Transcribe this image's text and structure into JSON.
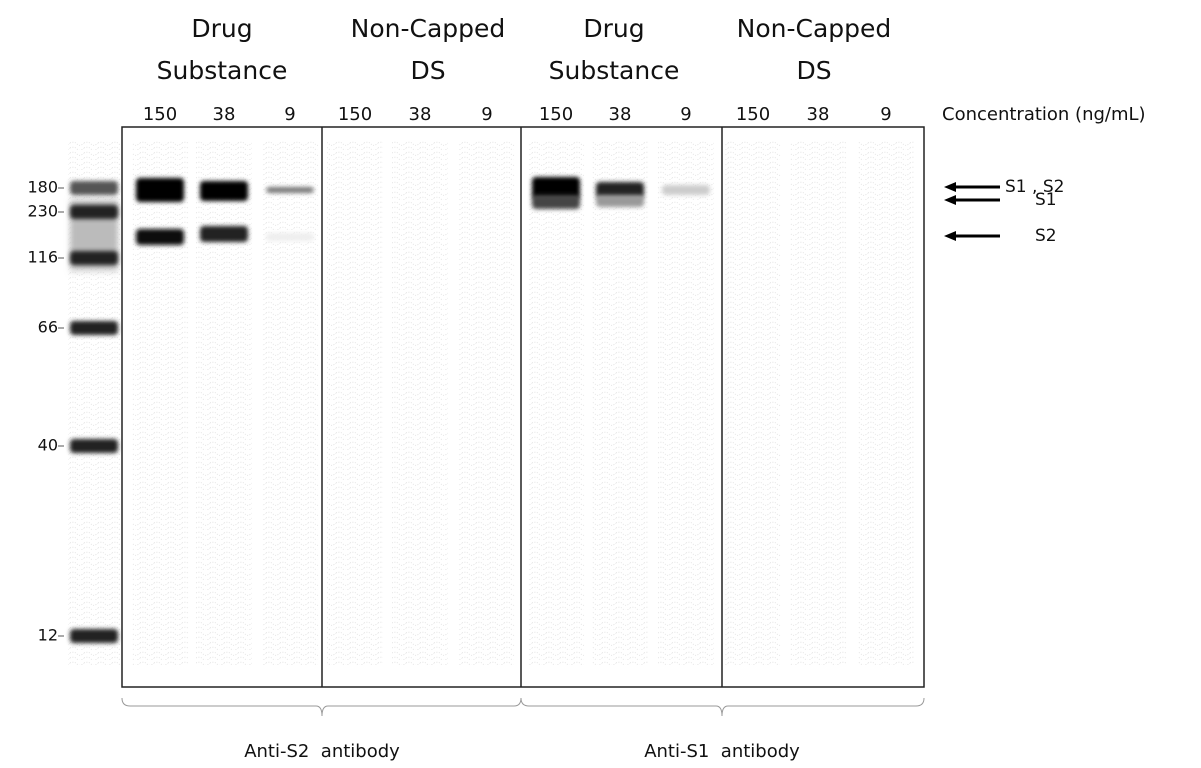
{
  "groups": [
    {
      "label_lines": [
        "Drug",
        "Substance"
      ],
      "concentrations": [
        150,
        38,
        9
      ]
    },
    {
      "label_lines": [
        "Non-Capped",
        "DS"
      ],
      "concentrations": [
        150,
        38,
        9
      ]
    },
    {
      "label_lines": [
        "Drug",
        "Substance"
      ],
      "concentrations": [
        150,
        38,
        9
      ]
    },
    {
      "label_lines": [
        "Non-Capped",
        "DS"
      ],
      "concentrations": [
        150,
        38,
        9
      ]
    }
  ],
  "concentration_label": "Concentration (ng/mL)",
  "ladder": [
    230,
    180,
    116,
    66,
    40,
    12
  ],
  "arrows": [
    "S1 , S2",
    "S1",
    "S2"
  ],
  "antibodies": [
    "Anti-S2  antibody",
    "Anti-S1  antibody"
  ]
}
